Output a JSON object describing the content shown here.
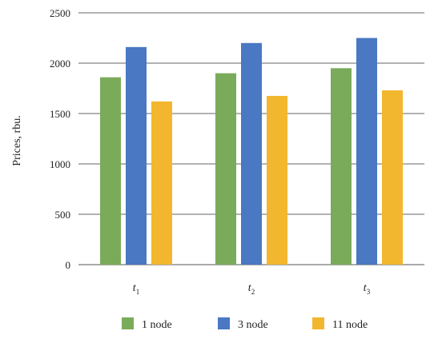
{
  "chart_data": {
    "type": "bar",
    "categories": [
      {
        "base": "t",
        "sub": "1"
      },
      {
        "base": "t",
        "sub": "2"
      },
      {
        "base": "t",
        "sub": "3"
      }
    ],
    "series": [
      {
        "name": "1 node",
        "color": "#7aab5a",
        "values": [
          1860,
          1900,
          1950
        ]
      },
      {
        "name": "3 node",
        "color": "#4a78c2",
        "values": [
          2160,
          2200,
          2250
        ]
      },
      {
        "name": "11 node",
        "color": "#f3b62f",
        "values": [
          1620,
          1675,
          1730
        ]
      }
    ],
    "ylabel": "Prices, rbu.",
    "ylim": [
      0,
      2500
    ],
    "yticks": [
      0,
      500,
      1000,
      1500,
      2000,
      2500
    ],
    "grid": true,
    "legend": "bottom"
  }
}
